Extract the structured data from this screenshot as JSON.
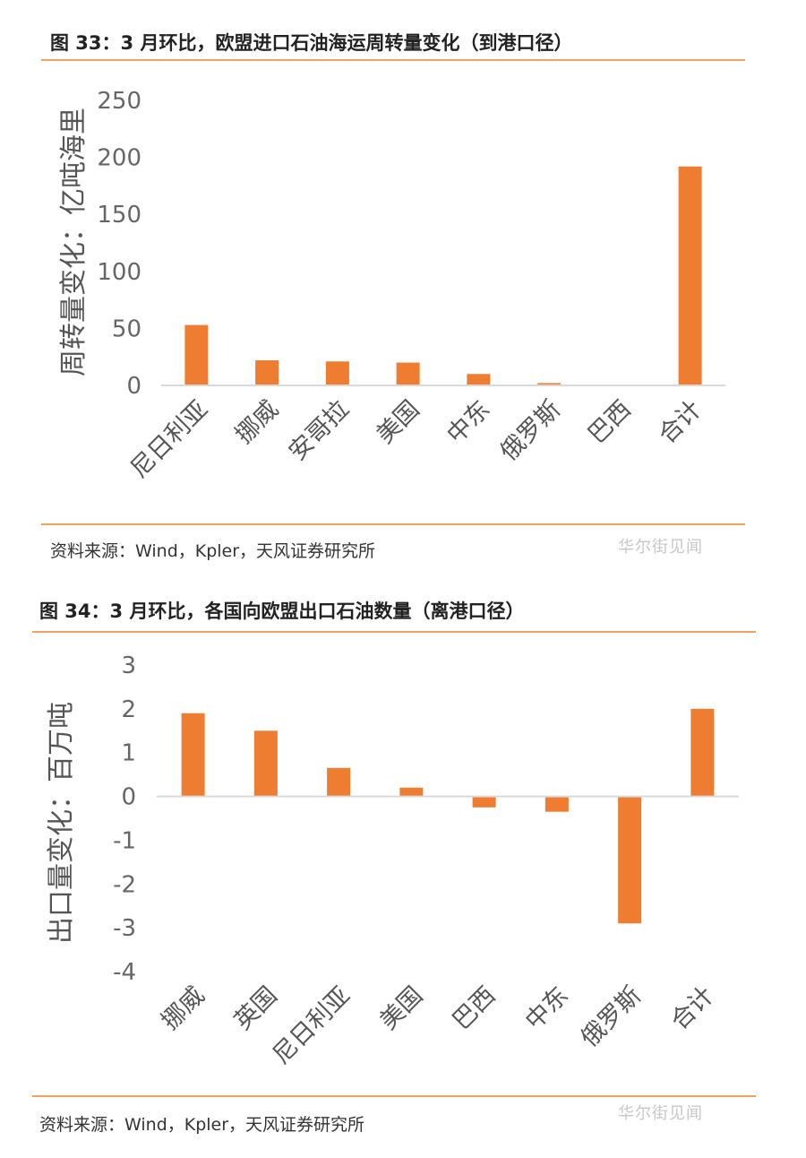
{
  "charts": [
    {
      "title": "图 33：3 月环比，欧盟进口石油海运周转量变化（到港口径）",
      "source": "资料来源：Wind，Kpler，天风证券研究所",
      "watermark": "华尔街见闻",
      "chart_data": {
        "type": "bar",
        "ylabel": "周转量变化：亿吨海里",
        "xlabel": "",
        "ylim": [
          0,
          250
        ],
        "yticks": [
          0,
          50,
          100,
          150,
          200,
          250
        ],
        "grid": false,
        "categories": [
          "尼日利亚",
          "挪威",
          "安哥拉",
          "美国",
          "中东",
          "俄罗斯",
          "巴西",
          "合计"
        ],
        "values": [
          53,
          22,
          21,
          20,
          10,
          2,
          0.5,
          192
        ],
        "color": "#ee7d31"
      }
    },
    {
      "title": "图 34：3 月环比，各国向欧盟出口石油数量（离港口径）",
      "source": "资料来源：Wind，Kpler，天风证券研究所",
      "watermark": "华尔街见闻",
      "chart_data": {
        "type": "bar",
        "ylabel": "出口量变化：百万吨",
        "xlabel": "",
        "ylim": [
          -4,
          3
        ],
        "yticks": [
          -4,
          -3,
          -2,
          -1,
          0,
          1,
          2,
          3
        ],
        "grid": false,
        "categories": [
          "挪威",
          "英国",
          "尼日利亚",
          "美国",
          "巴西",
          "中东",
          "俄罗斯",
          "合计"
        ],
        "values": [
          1.9,
          1.5,
          0.65,
          0.2,
          -0.25,
          -0.35,
          -2.9,
          2.0
        ],
        "color": "#ee7d31"
      }
    }
  ]
}
